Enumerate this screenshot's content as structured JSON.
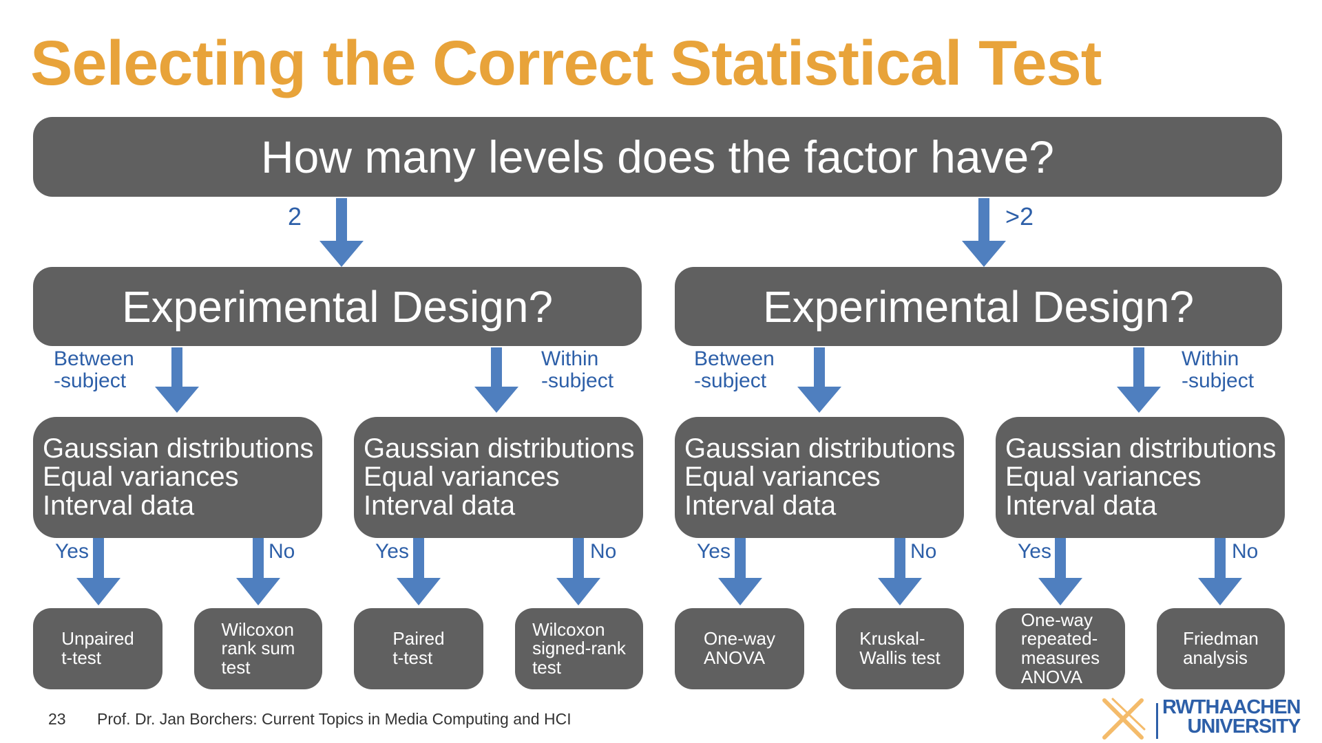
{
  "title": "Selecting the Correct Statistical Test",
  "root_question": "How many levels does the factor have?",
  "branches": {
    "left": {
      "label": "2",
      "design_question": "Experimental Design?",
      "between_label": "Between\n-subject",
      "within_label": "Within\n-subject"
    },
    "right": {
      "label": ">2",
      "design_question": "Experimental Design?",
      "between_label": "Between\n-subject",
      "within_label": "Within\n-subject"
    }
  },
  "criteria": {
    "line1": "Gaussian distributions",
    "line2": "Equal variances",
    "line3": "Interval data"
  },
  "answers": {
    "yes": "Yes",
    "no": "No"
  },
  "tests": [
    "Unpaired\nt-test",
    "Wilcoxon\nrank sum\ntest",
    "Paired\nt-test",
    "Wilcoxon\nsigned-rank\ntest",
    "One-way\nANOVA",
    "Kruskal-\nWallis test",
    "One-way\nrepeated-\nmeasures\nANOVA",
    "Friedman\nanalysis"
  ],
  "footer": {
    "page_number": "23",
    "course": "Prof. Dr. Jan Borchers: Current Topics in Media Computing and HCI"
  },
  "logo": {
    "line1": "RWTHAACHEN",
    "line2": "UNIVERSITY"
  },
  "colors": {
    "title": "#E8A33A",
    "box": "#606060",
    "arrow": "#4F7FBF",
    "label": "#2D5FA8",
    "logo_accent": "#F3B45A"
  }
}
